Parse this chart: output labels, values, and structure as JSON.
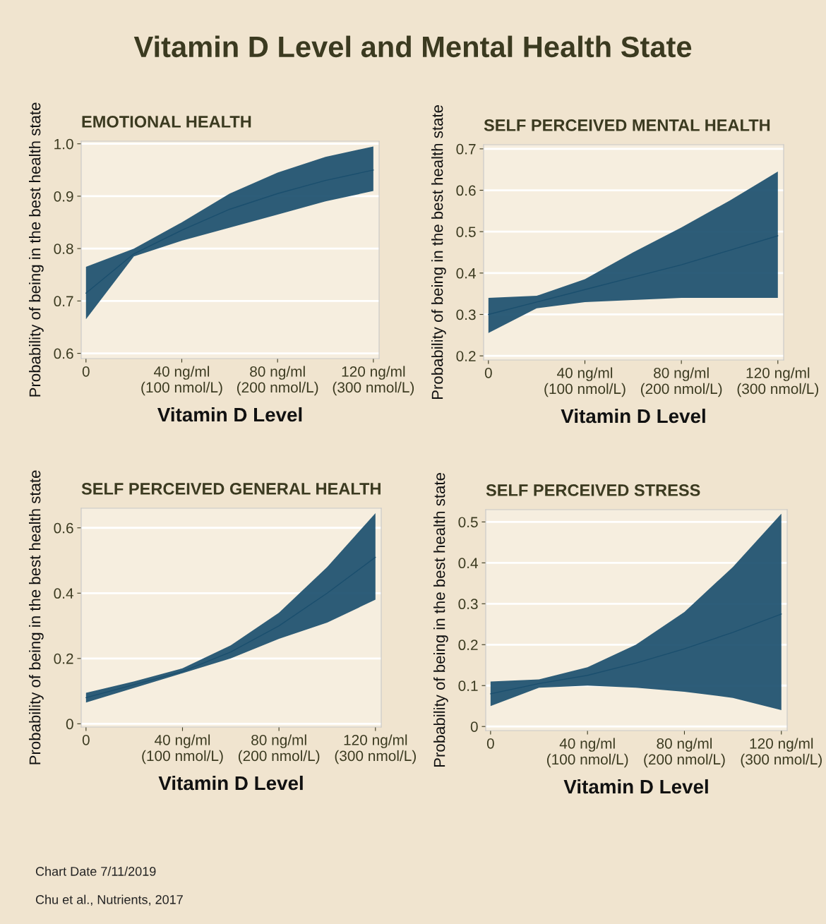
{
  "chart_data": [
    {
      "type": "line",
      "title": "EMOTIONAL HEALTH",
      "xlabel": "Vitamin D Level",
      "ylabel": "Probability of being in the best health state",
      "categories": [
        "0",
        null,
        "40 ng/ml\n(100 nmol/L)",
        null,
        "80 ng/ml\n(200 nmol/L)",
        null,
        "120 ng/ml\n(300 nmol/L)"
      ],
      "series": [
        {
          "color": "#1b4f6e",
          "values": [
            0.715,
            0.79,
            0.835,
            0.875,
            0.905,
            0.93,
            0.95
          ],
          "lower": [
            0.665,
            0.785,
            0.815,
            0.84,
            0.865,
            0.89,
            0.91
          ],
          "upper": [
            0.765,
            0.8,
            0.85,
            0.905,
            0.945,
            0.975,
            0.995
          ]
        }
      ],
      "ylim": [
        0.59,
        1.005
      ],
      "yticks": [
        0.6,
        0.7,
        0.8,
        0.9,
        {
          "value": 1,
          "label": "1.0"
        }
      ],
      "grid": "y",
      "marker": "none",
      "line_style": "solid"
    },
    {
      "type": "line",
      "title": "SELF PERCEIVED MENTAL HEALTH",
      "xlabel": "Vitamin D Level",
      "ylabel": "Probability of being in the best health state",
      "categories": [
        "0",
        null,
        "40 ng/ml\n(100 nmol/L)",
        null,
        "80 ng/ml\n(200 nmol/L)",
        null,
        "120 ng/ml\n(300 nmol/L)"
      ],
      "series": [
        {
          "color": "#1b4f6e",
          "values": [
            0.3,
            0.33,
            0.36,
            0.39,
            0.42,
            0.455,
            0.49
          ],
          "lower": [
            0.255,
            0.315,
            0.33,
            0.335,
            0.34,
            0.34,
            0.34
          ],
          "upper": [
            0.34,
            0.345,
            0.385,
            0.45,
            0.51,
            0.575,
            0.645
          ]
        }
      ],
      "ylim": [
        0.19,
        0.71
      ],
      "yticks": [
        0.2,
        0.3,
        0.4,
        0.5,
        0.6,
        0.7
      ],
      "grid": "y",
      "marker": "none",
      "line_style": "solid"
    },
    {
      "type": "line",
      "title": "SELF PERCEIVED GENERAL HEALTH",
      "xlabel": "Vitamin D Level",
      "ylabel": "Probability of being in the best health state",
      "categories": [
        "0",
        null,
        "40 ng/ml\n(100 nmol/L)",
        null,
        "80 ng/ml\n(200 nmol/L)",
        null,
        "120 ng/ml\n(300 nmol/L)"
      ],
      "series": [
        {
          "color": "#1b4f6e",
          "values": [
            0.08,
            0.12,
            0.16,
            0.22,
            0.3,
            0.4,
            0.51
          ],
          "lower": [
            0.065,
            0.11,
            0.155,
            0.2,
            0.26,
            0.31,
            0.38
          ],
          "upper": [
            0.095,
            0.13,
            0.17,
            0.24,
            0.34,
            0.48,
            0.645
          ]
        }
      ],
      "ylim": [
        -0.01,
        0.66
      ],
      "yticks": [
        0,
        0.2,
        0.4,
        0.6
      ],
      "grid": "y",
      "marker": "none",
      "line_style": "solid"
    },
    {
      "type": "line",
      "title": "SELF PERCEIVED STRESS",
      "xlabel": "Vitamin D Level",
      "ylabel": "Probability of being in the best health state",
      "categories": [
        "0",
        null,
        "40 ng/ml\n(100 nmol/L)",
        null,
        "80 ng/ml\n(200 nmol/L)",
        null,
        "120 ng/ml\n(300 nmol/L)"
      ],
      "series": [
        {
          "color": "#1b4f6e",
          "values": [
            0.08,
            0.105,
            0.125,
            0.155,
            0.19,
            0.23,
            0.275
          ],
          "lower": [
            0.05,
            0.095,
            0.1,
            0.095,
            0.085,
            0.07,
            0.04
          ],
          "upper": [
            0.11,
            0.115,
            0.145,
            0.2,
            0.28,
            0.39,
            0.52
          ]
        }
      ],
      "ylim": [
        -0.01,
        0.53
      ],
      "yticks": [
        0,
        0.1,
        0.2,
        0.3,
        0.4,
        0.5
      ],
      "grid": "y",
      "marker": "none",
      "line_style": "solid"
    },
    {
      "type": "other",
      "title": "Vitamin D Level and Mental Health State",
      "annotations": [
        "Chart Date 7/11/2019",
        "Chu et al., Nutrients, 2017"
      ]
    }
  ]
}
